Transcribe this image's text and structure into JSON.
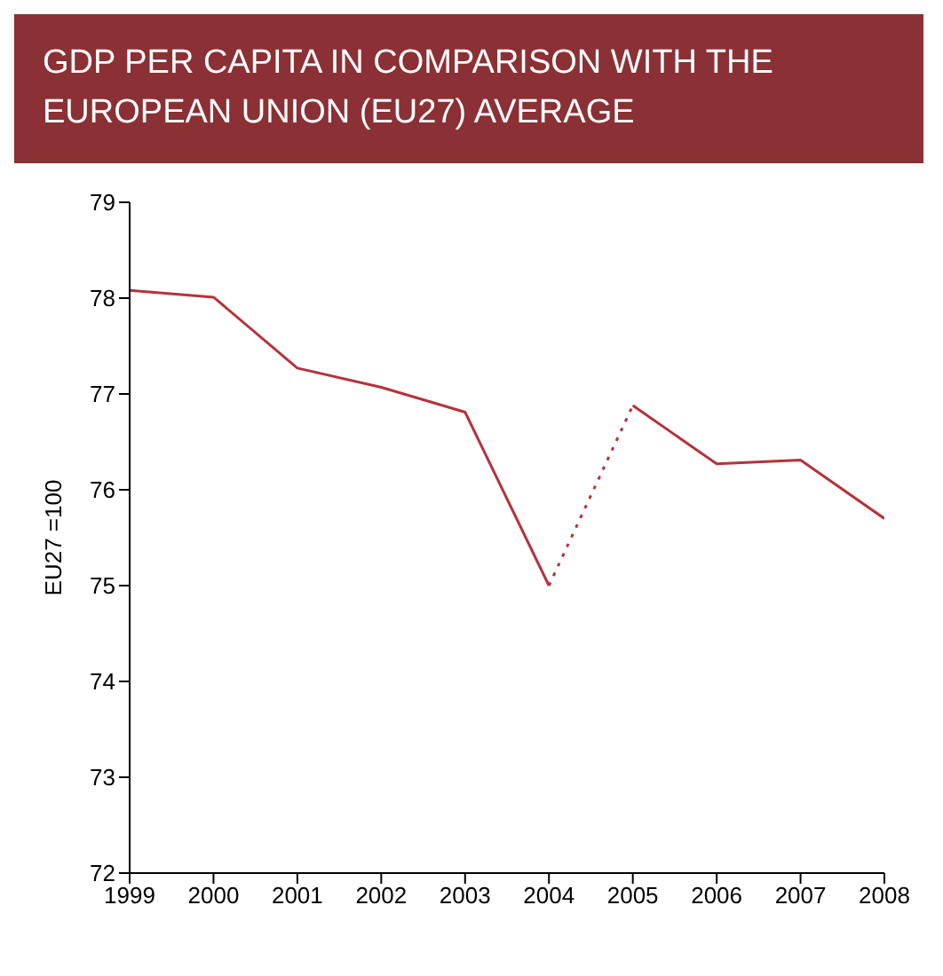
{
  "chart_data": {
    "type": "line",
    "title": "GDP PER CAPITA IN COMPARISON WITH THE EUROPEAN UNION (EU27) AVERAGE",
    "ylabel": "EU27 =100",
    "xlim": [
      1999,
      2008
    ],
    "xticks": [
      1999,
      2000,
      2001,
      2002,
      2003,
      2004,
      2005,
      2006,
      2007,
      2008
    ],
    "ylim": [
      72,
      79
    ],
    "yticks": [
      72,
      73,
      74,
      75,
      76,
      77,
      78,
      79
    ],
    "marker": "none",
    "series": [
      {
        "color": "#b5323a",
        "line_style": "solid",
        "x": [
          1999,
          2000,
          2001,
          2002,
          2003,
          2004
        ],
        "values": [
          78.08,
          78.01,
          77.27,
          77.07,
          76.81,
          75.0
        ]
      },
      {
        "color": "#b5323a",
        "line_style": "dotted",
        "x": [
          2004,
          2005
        ],
        "values": [
          75.0,
          76.88
        ]
      },
      {
        "color": "#b5323a",
        "line_style": "solid",
        "x": [
          2005,
          2006,
          2007,
          2008
        ],
        "values": [
          76.88,
          76.27,
          76.31,
          75.7
        ]
      }
    ]
  }
}
